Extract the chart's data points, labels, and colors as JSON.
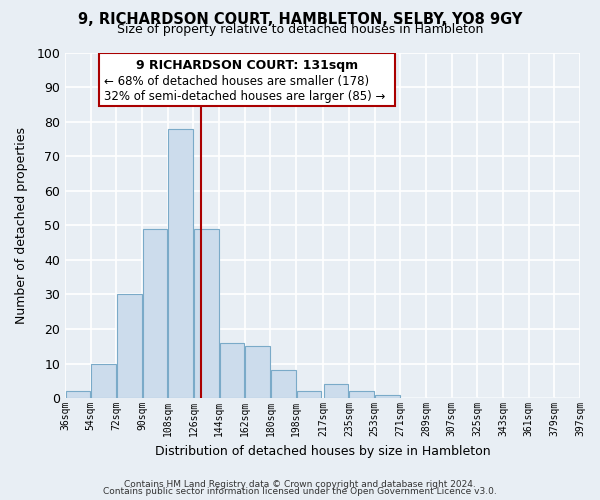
{
  "title": "9, RICHARDSON COURT, HAMBLETON, SELBY, YO8 9GY",
  "subtitle": "Size of property relative to detached houses in Hambleton",
  "xlabel": "Distribution of detached houses by size in Hambleton",
  "ylabel": "Number of detached properties",
  "bar_edges": [
    36,
    54,
    72,
    90,
    108,
    126,
    144,
    162,
    180,
    198,
    217,
    235,
    253,
    271,
    289,
    307,
    325,
    343,
    361,
    379,
    397
  ],
  "bar_heights": [
    2,
    10,
    30,
    49,
    78,
    49,
    16,
    15,
    8,
    2,
    4,
    2,
    1,
    0,
    0,
    0,
    0,
    0,
    0,
    0
  ],
  "bar_color": "#ccdcec",
  "bar_edge_color": "#7aaac8",
  "property_line_x": 131,
  "property_line_color": "#aa0000",
  "ylim": [
    0,
    100
  ],
  "xlim": [
    36,
    397
  ],
  "annotation_title": "9 RICHARDSON COURT: 131sqm",
  "annotation_line1": "← 68% of detached houses are smaller (178)",
  "annotation_line2": "32% of semi-detached houses are larger (85) →",
  "tick_labels": [
    "36sqm",
    "54sqm",
    "72sqm",
    "90sqm",
    "108sqm",
    "126sqm",
    "144sqm",
    "162sqm",
    "180sqm",
    "198sqm",
    "217sqm",
    "235sqm",
    "253sqm",
    "271sqm",
    "289sqm",
    "307sqm",
    "325sqm",
    "343sqm",
    "361sqm",
    "379sqm",
    "397sqm"
  ],
  "footer1": "Contains HM Land Registry data © Crown copyright and database right 2024.",
  "footer2": "Contains public sector information licensed under the Open Government Licence v3.0.",
  "background_color": "#e8eef4",
  "grid_color": "#ffffff"
}
